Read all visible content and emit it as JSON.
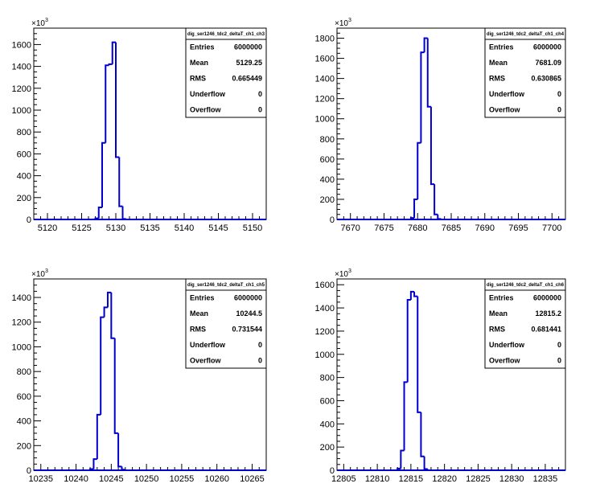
{
  "chart_data": [
    {
      "type": "bar",
      "name": "dig_ser1246_tdc2_deltaT_ch1_ch3",
      "multiplier": "×10",
      "multiplier_exp": "3",
      "xlim": [
        5118,
        5152
      ],
      "ylim": [
        0,
        1750
      ],
      "xticks": [
        5120,
        5125,
        5130,
        5135,
        5140,
        5145,
        5150
      ],
      "yticks": [
        0,
        200,
        400,
        600,
        800,
        1000,
        1200,
        1400,
        1600
      ],
      "ytick_labels": [
        "0",
        "200",
        "400",
        "600",
        "800",
        "1000",
        "1200",
        "1400",
        "1600"
      ],
      "bin_width": 0.5,
      "bins": [
        {
          "x": 5127.0,
          "y": 10
        },
        {
          "x": 5127.5,
          "y": 110
        },
        {
          "x": 5128.0,
          "y": 700
        },
        {
          "x": 5128.5,
          "y": 1410
        },
        {
          "x": 5129.0,
          "y": 1420
        },
        {
          "x": 5129.5,
          "y": 1620
        },
        {
          "x": 5130.0,
          "y": 570
        },
        {
          "x": 5130.5,
          "y": 120
        },
        {
          "x": 5131.0,
          "y": 5
        }
      ],
      "stats": [
        {
          "label": "Entries",
          "value": "6000000"
        },
        {
          "label": "Mean",
          "value": "5129.25"
        },
        {
          "label": "RMS",
          "value": "0.665449"
        },
        {
          "label": "Underflow",
          "value": "0"
        },
        {
          "label": "Overflow",
          "value": "0"
        }
      ]
    },
    {
      "type": "bar",
      "name": "dig_ser1246_tdc2_deltaT_ch1_ch4",
      "multiplier": "×10",
      "multiplier_exp": "3",
      "xlim": [
        7668,
        7702
      ],
      "ylim": [
        0,
        1900
      ],
      "xticks": [
        7670,
        7675,
        7680,
        7685,
        7690,
        7695,
        7700
      ],
      "yticks": [
        0,
        200,
        400,
        600,
        800,
        1000,
        1200,
        1400,
        1600,
        1800
      ],
      "ytick_labels": [
        "0",
        "200",
        "400",
        "600",
        "800",
        "1000",
        "1200",
        "1400",
        "1600",
        "1800"
      ],
      "bin_width": 0.5,
      "bins": [
        {
          "x": 7679.0,
          "y": 15
        },
        {
          "x": 7679.5,
          "y": 200
        },
        {
          "x": 7680.0,
          "y": 760
        },
        {
          "x": 7680.5,
          "y": 1660
        },
        {
          "x": 7681.0,
          "y": 1800
        },
        {
          "x": 7681.5,
          "y": 1120
        },
        {
          "x": 7682.0,
          "y": 350
        },
        {
          "x": 7682.5,
          "y": 50
        },
        {
          "x": 7683.0,
          "y": 5
        }
      ],
      "stats": [
        {
          "label": "Entries",
          "value": "6000000"
        },
        {
          "label": "Mean",
          "value": "7681.09"
        },
        {
          "label": "RMS",
          "value": "0.630865"
        },
        {
          "label": "Underflow",
          "value": "0"
        },
        {
          "label": "Overflow",
          "value": "0"
        }
      ]
    },
    {
      "type": "bar",
      "name": "dig_ser1246_tdc2_deltaT_ch1_ch5",
      "multiplier": "×10",
      "multiplier_exp": "3",
      "xlim": [
        10234,
        10267
      ],
      "ylim": [
        0,
        1550
      ],
      "xticks": [
        10235,
        10240,
        10245,
        10250,
        10255,
        10260,
        10265
      ],
      "yticks": [
        0,
        200,
        400,
        600,
        800,
        1000,
        1200,
        1400
      ],
      "ytick_labels": [
        "0",
        "200",
        "400",
        "600",
        "800",
        "1000",
        "1200",
        "1400"
      ],
      "bin_width": 0.5,
      "bins": [
        {
          "x": 10242.0,
          "y": 10
        },
        {
          "x": 10242.5,
          "y": 90
        },
        {
          "x": 10243.0,
          "y": 450
        },
        {
          "x": 10243.5,
          "y": 1240
        },
        {
          "x": 10244.0,
          "y": 1320
        },
        {
          "x": 10244.5,
          "y": 1440
        },
        {
          "x": 10245.0,
          "y": 1070
        },
        {
          "x": 10245.5,
          "y": 300
        },
        {
          "x": 10246.0,
          "y": 30
        },
        {
          "x": 10246.5,
          "y": 5
        }
      ],
      "stats": [
        {
          "label": "Entries",
          "value": "6000000"
        },
        {
          "label": "Mean",
          "value": "10244.5"
        },
        {
          "label": "RMS",
          "value": "0.731544"
        },
        {
          "label": "Underflow",
          "value": "0"
        },
        {
          "label": "Overflow",
          "value": "0"
        }
      ]
    },
    {
      "type": "bar",
      "name": "dig_ser1246_tdc2_deltaT_ch1_ch6",
      "multiplier": "×10",
      "multiplier_exp": "3",
      "xlim": [
        12804,
        12838
      ],
      "ylim": [
        0,
        1650
      ],
      "xticks": [
        12805,
        12810,
        12815,
        12820,
        12825,
        12830,
        12835
      ],
      "yticks": [
        0,
        200,
        400,
        600,
        800,
        1000,
        1200,
        1400,
        1600
      ],
      "ytick_labels": [
        "0",
        "200",
        "400",
        "600",
        "800",
        "1000",
        "1200",
        "1400",
        "1600"
      ],
      "bin_width": 0.5,
      "bins": [
        {
          "x": 12813.0,
          "y": 15
        },
        {
          "x": 12813.5,
          "y": 170
        },
        {
          "x": 12814.0,
          "y": 760
        },
        {
          "x": 12814.5,
          "y": 1470
        },
        {
          "x": 12815.0,
          "y": 1540
        },
        {
          "x": 12815.5,
          "y": 1500
        },
        {
          "x": 12816.0,
          "y": 500
        },
        {
          "x": 12816.5,
          "y": 120
        },
        {
          "x": 12817.0,
          "y": 10
        }
      ],
      "stats": [
        {
          "label": "Entries",
          "value": "6000000"
        },
        {
          "label": "Mean",
          "value": "12815.2"
        },
        {
          "label": "RMS",
          "value": "0.681441"
        },
        {
          "label": "Underflow",
          "value": "0"
        },
        {
          "label": "Overflow",
          "value": "0"
        }
      ]
    }
  ]
}
